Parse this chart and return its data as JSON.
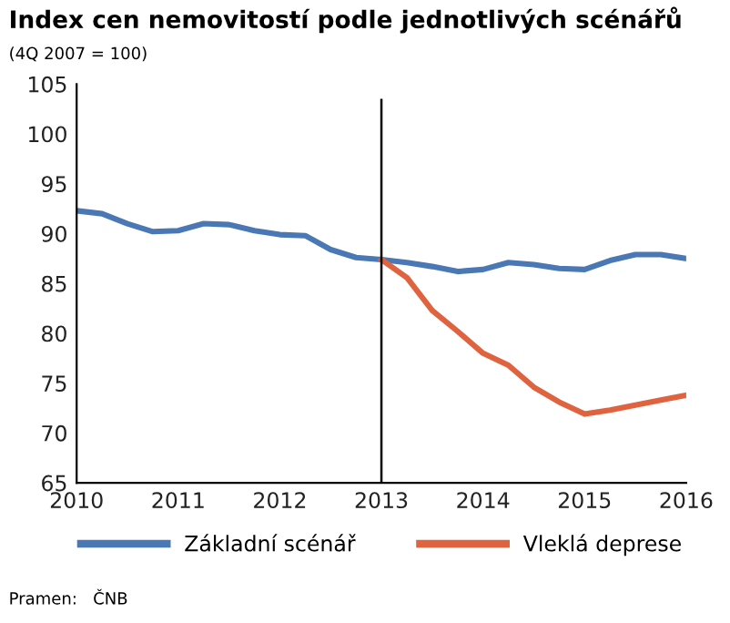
{
  "chart_data": {
    "type": "line",
    "title": "Index cen nemovitostí podle jednotlivých scénářů",
    "subtitle": "(4Q 2007 = 100)",
    "series": [
      {
        "name": "Základní scénář",
        "color": "#4a78b5",
        "x": [
          2010,
          2010.25,
          2010.5,
          2010.75,
          2011,
          2011.25,
          2011.5,
          2011.75,
          2012,
          2012.25,
          2012.5,
          2012.75,
          2013,
          2013.25,
          2013.5,
          2013.75,
          2014,
          2014.25,
          2014.5,
          2014.75,
          2015,
          2015.25,
          2015.5,
          2015.75,
          2016
        ],
        "values": [
          92.3,
          92.0,
          91.0,
          90.2,
          90.3,
          91.0,
          90.9,
          90.3,
          89.9,
          89.8,
          88.4,
          87.6,
          87.4,
          87.1,
          86.7,
          86.2,
          86.4,
          87.1,
          86.9,
          86.5,
          86.4,
          87.3,
          87.9,
          87.9,
          87.5
        ]
      },
      {
        "name": "Vleklá deprese",
        "color": "#e0633f",
        "x": [
          2013,
          2013.25,
          2013.5,
          2013.75,
          2014,
          2014.25,
          2014.5,
          2014.75,
          2015,
          2015.25,
          2015.5,
          2015.75,
          2016
        ],
        "values": [
          87.4,
          85.6,
          82.3,
          80.2,
          78.0,
          76.8,
          74.6,
          73.1,
          71.9,
          72.3,
          72.8,
          73.3,
          73.8
        ]
      }
    ],
    "xlim": [
      2010,
      2016
    ],
    "xticks": [
      2010,
      2011,
      2012,
      2013,
      2014,
      2015,
      2016
    ],
    "ylim": [
      65,
      105
    ],
    "yticks": [
      65,
      70,
      75,
      80,
      85,
      90,
      95,
      100,
      105
    ],
    "ref_lines": [
      {
        "axis": "x",
        "value": 2013,
        "label": null,
        "color": "#000000"
      }
    ],
    "grid": false,
    "legend": "bottom",
    "line_style": "solid",
    "annotations": [
      "Pramen:   ČNB"
    ]
  }
}
